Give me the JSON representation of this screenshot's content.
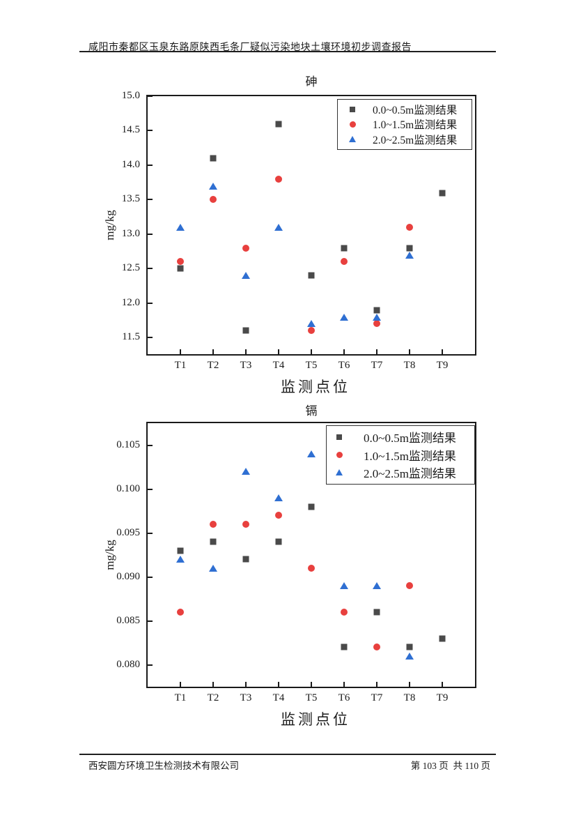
{
  "page": {
    "header": {
      "title": "咸阳市秦都区玉泉东路原陕西毛条厂疑似污染地块土壤环境初步调查报告"
    },
    "footer": {
      "company": "西安圆方环境卫生检测技术有限公司",
      "page_info": "第 103 页  共 110 页"
    }
  },
  "chart_data": [
    {
      "type": "scatter",
      "title": "砷",
      "xlabel": "监测点位",
      "ylabel": "mg/kg",
      "categories": [
        "T1",
        "T2",
        "T3",
        "T4",
        "T5",
        "T6",
        "T7",
        "T8",
        "T9"
      ],
      "ylim": [
        11.26,
        15.0
      ],
      "ytick_values": [
        15.0,
        14.5,
        14.0,
        13.5,
        13.0,
        12.5,
        12.0,
        11.5
      ],
      "ytick_labels": [
        "15.0",
        "14.5",
        "14.0",
        "13.5",
        "13.0",
        "12.5",
        "12.0",
        "11.5"
      ],
      "grid": false,
      "legend_position": "top-right",
      "series": [
        {
          "name": "0.0~0.5m监测结果",
          "marker": "square",
          "color": "#4a4a4a",
          "values": [
            12.5,
            14.1,
            11.6,
            14.6,
            12.4,
            12.8,
            11.9,
            12.8,
            13.6
          ]
        },
        {
          "name": "1.0~1.5m监测结果",
          "marker": "circle",
          "color": "#e8403e",
          "values": [
            12.6,
            13.5,
            12.8,
            13.8,
            11.6,
            12.6,
            11.7,
            13.1,
            null
          ]
        },
        {
          "name": "2.0~2.5m监测结果",
          "marker": "triangle",
          "color": "#2f6fd2",
          "values": [
            13.1,
            13.7,
            12.4,
            13.1,
            11.7,
            11.8,
            11.8,
            12.7,
            null
          ]
        }
      ]
    },
    {
      "type": "scatter",
      "title": "镉",
      "xlabel": "监测点位",
      "ylabel": "mg/kg",
      "categories": [
        "T1",
        "T2",
        "T3",
        "T4",
        "T5",
        "T6",
        "T7",
        "T8",
        "T9"
      ],
      "ylim": [
        0.0775,
        0.1075
      ],
      "ytick_values": [
        0.105,
        0.1,
        0.095,
        0.09,
        0.085,
        0.08
      ],
      "ytick_labels": [
        "0.105",
        "0.100",
        "0.095",
        "0.090",
        "0.085",
        "0.080"
      ],
      "grid": false,
      "legend_position": "top-right",
      "series": [
        {
          "name": "0.0~0.5m监测结果",
          "marker": "square",
          "color": "#4a4a4a",
          "values": [
            0.093,
            0.094,
            0.092,
            0.094,
            0.098,
            0.082,
            0.086,
            0.082,
            0.083
          ]
        },
        {
          "name": "1.0~1.5m监测结果",
          "marker": "circle",
          "color": "#e8403e",
          "values": [
            0.086,
            0.096,
            0.096,
            0.097,
            0.091,
            0.086,
            0.082,
            0.089,
            null
          ]
        },
        {
          "name": "2.0~2.5m监测结果",
          "marker": "triangle",
          "color": "#2f6fd2",
          "values": [
            0.092,
            0.091,
            0.102,
            0.099,
            0.104,
            0.089,
            0.089,
            0.081,
            null
          ]
        }
      ]
    }
  ]
}
